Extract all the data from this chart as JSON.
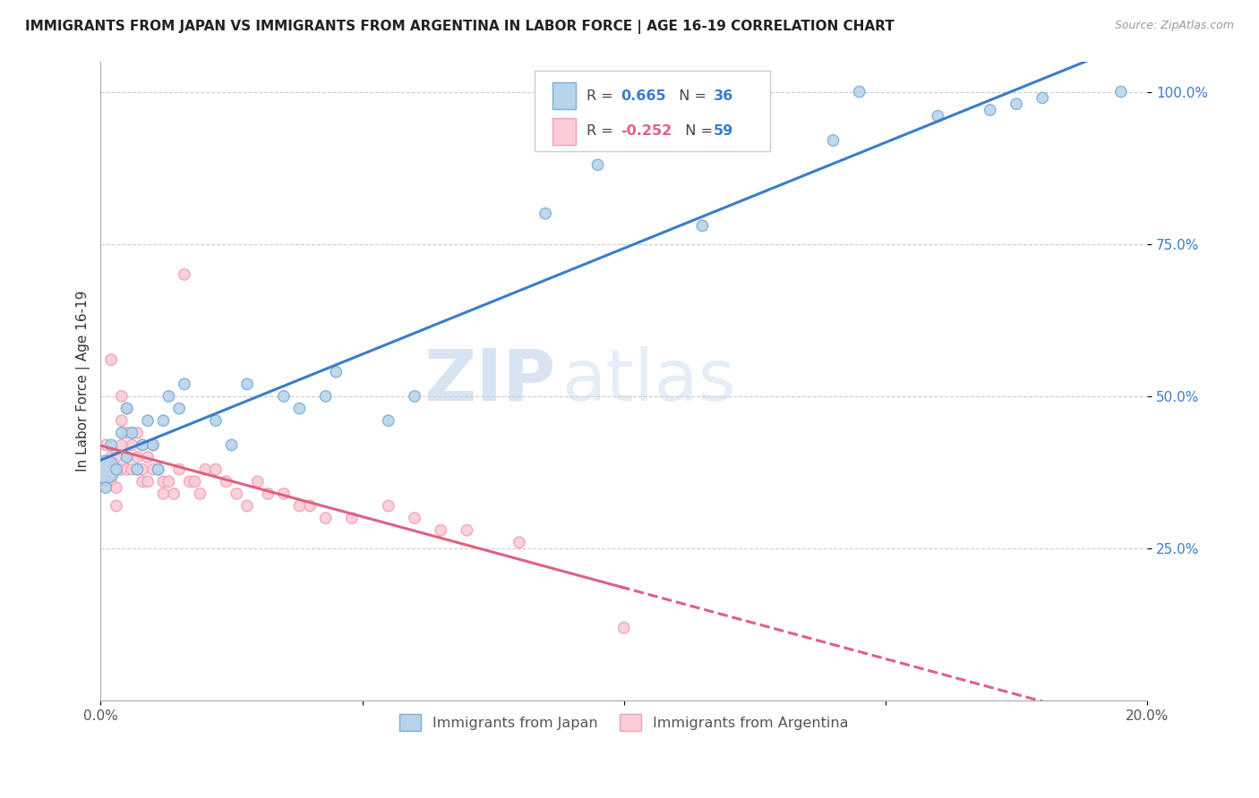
{
  "title": "IMMIGRANTS FROM JAPAN VS IMMIGRANTS FROM ARGENTINA IN LABOR FORCE | AGE 16-19 CORRELATION CHART",
  "source": "Source: ZipAtlas.com",
  "ylabel_label": "In Labor Force | Age 16-19",
  "watermark_zip": "ZIP",
  "watermark_atlas": "atlas",
  "xlim": [
    0.0,
    0.2
  ],
  "ylim": [
    0.0,
    1.05
  ],
  "japan_color": "#7bafd4",
  "japan_color_fill": "#b8d4eb",
  "argentina_color": "#f0a0b8",
  "argentina_color_fill": "#f9ccd8",
  "trendline_japan_color": "#3a7dc9",
  "trendline_argentina_color": "#e06080",
  "legend_japan_R": "0.665",
  "legend_japan_N": "36",
  "legend_argentina_R": "-0.252",
  "legend_argentina_N": "59",
  "japan_x": [
    0.001,
    0.001,
    0.002,
    0.003,
    0.004,
    0.005,
    0.005,
    0.006,
    0.007,
    0.008,
    0.009,
    0.01,
    0.011,
    0.012,
    0.013,
    0.015,
    0.016,
    0.022,
    0.025,
    0.028,
    0.035,
    0.038,
    0.043,
    0.045,
    0.055,
    0.06,
    0.085,
    0.095,
    0.115,
    0.14,
    0.145,
    0.16,
    0.17,
    0.175,
    0.18,
    0.195
  ],
  "japan_y": [
    0.38,
    0.35,
    0.42,
    0.38,
    0.44,
    0.4,
    0.48,
    0.44,
    0.38,
    0.42,
    0.46,
    0.42,
    0.38,
    0.46,
    0.5,
    0.48,
    0.52,
    0.46,
    0.42,
    0.52,
    0.5,
    0.48,
    0.5,
    0.54,
    0.46,
    0.5,
    0.8,
    0.88,
    0.78,
    0.92,
    1.0,
    0.96,
    0.97,
    0.98,
    0.99,
    1.0
  ],
  "japan_sizes": [
    500,
    80,
    80,
    80,
    80,
    80,
    80,
    80,
    80,
    80,
    80,
    80,
    80,
    80,
    80,
    80,
    80,
    80,
    80,
    80,
    80,
    80,
    80,
    80,
    80,
    80,
    80,
    80,
    80,
    80,
    80,
    80,
    80,
    80,
    80,
    80
  ],
  "argentina_x": [
    0.001,
    0.001,
    0.001,
    0.002,
    0.002,
    0.002,
    0.003,
    0.003,
    0.003,
    0.003,
    0.004,
    0.004,
    0.004,
    0.004,
    0.005,
    0.005,
    0.005,
    0.005,
    0.006,
    0.006,
    0.006,
    0.007,
    0.007,
    0.007,
    0.008,
    0.008,
    0.008,
    0.009,
    0.009,
    0.01,
    0.01,
    0.011,
    0.012,
    0.012,
    0.013,
    0.014,
    0.015,
    0.016,
    0.017,
    0.018,
    0.019,
    0.02,
    0.022,
    0.024,
    0.026,
    0.028,
    0.03,
    0.032,
    0.035,
    0.038,
    0.04,
    0.043,
    0.048,
    0.055,
    0.06,
    0.065,
    0.07,
    0.08,
    0.1
  ],
  "argentina_y": [
    0.38,
    0.36,
    0.42,
    0.56,
    0.4,
    0.36,
    0.4,
    0.38,
    0.35,
    0.32,
    0.5,
    0.46,
    0.42,
    0.38,
    0.48,
    0.44,
    0.4,
    0.38,
    0.44,
    0.42,
    0.38,
    0.44,
    0.4,
    0.38,
    0.42,
    0.38,
    0.36,
    0.4,
    0.36,
    0.42,
    0.38,
    0.38,
    0.36,
    0.34,
    0.36,
    0.34,
    0.38,
    0.7,
    0.36,
    0.36,
    0.34,
    0.38,
    0.38,
    0.36,
    0.34,
    0.32,
    0.36,
    0.34,
    0.34,
    0.32,
    0.32,
    0.3,
    0.3,
    0.32,
    0.3,
    0.28,
    0.28,
    0.26,
    0.12
  ],
  "argentina_sizes": [
    400,
    80,
    80,
    80,
    80,
    80,
    80,
    80,
    80,
    80,
    80,
    80,
    80,
    80,
    80,
    80,
    80,
    80,
    80,
    80,
    80,
    80,
    80,
    80,
    80,
    80,
    80,
    80,
    80,
    80,
    80,
    80,
    80,
    80,
    80,
    80,
    80,
    80,
    80,
    80,
    80,
    80,
    80,
    80,
    80,
    80,
    80,
    80,
    80,
    80,
    80,
    80,
    80,
    80,
    80,
    80,
    80,
    80,
    80
  ]
}
